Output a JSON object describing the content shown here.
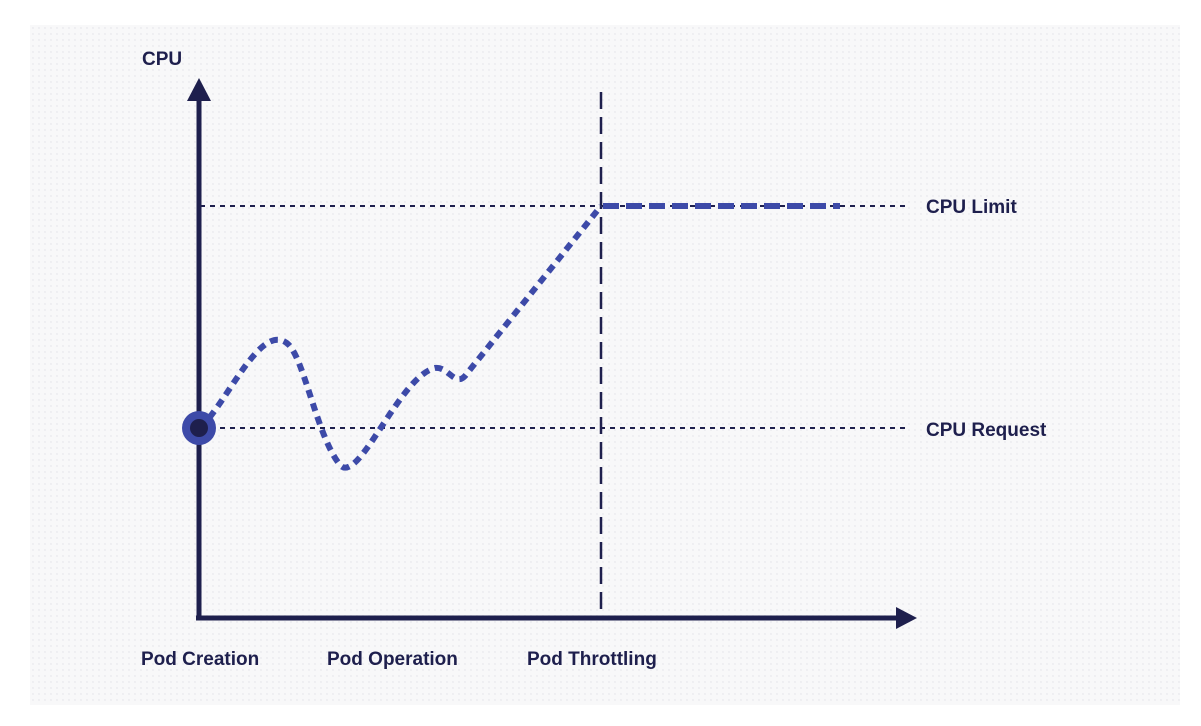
{
  "diagram": {
    "y_axis_label": "CPU",
    "reference_lines": {
      "limit_label": "CPU Limit",
      "request_label": "CPU Request"
    },
    "phases": {
      "creation": "Pod Creation",
      "operation": "Pod Operation",
      "throttling": "Pod Throttling"
    }
  },
  "colors": {
    "axis": "#1e1f4d",
    "usage_curve": "#3d4aa8",
    "marker_outer": "#3d4aa8",
    "marker_inner": "#1e1f4d",
    "panel_background": "#f8f8f9"
  }
}
